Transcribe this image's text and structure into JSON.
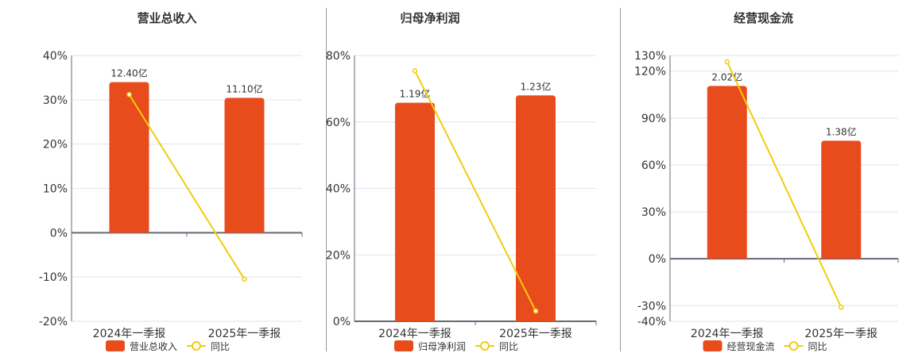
{
  "colors": {
    "bar": "#E84C1C",
    "line": "#F2CC0C",
    "grid": "#dfe3ee",
    "axis": "#666a78",
    "text": "#333333"
  },
  "chart_data": [
    {
      "type": "bar+line",
      "title": "营业总收入",
      "categories": [
        "2024年一季报",
        "2025年一季报"
      ],
      "bar_series": {
        "name": "营业总收入",
        "values": [
          12.4,
          11.1
        ],
        "labels": [
          "12.40亿",
          "11.10亿"
        ]
      },
      "line_series": {
        "name": "同比",
        "values": [
          31.2,
          -10.5
        ]
      },
      "yticks": [
        40,
        30,
        20,
        10,
        0,
        -10,
        -20
      ],
      "tick_labels": [
        "40%",
        "30%",
        "20%",
        "10%",
        "0%",
        "-10%",
        "-20%"
      ],
      "ylim": [
        -20,
        40
      ]
    },
    {
      "type": "bar+line",
      "title": "归母净利润",
      "categories": [
        "2024年一季报",
        "2025年一季报"
      ],
      "bar_series": {
        "name": "归母净利润",
        "values": [
          1.19,
          1.23
        ],
        "labels": [
          "1.19亿",
          "1.23亿"
        ]
      },
      "line_series": {
        "name": "同比",
        "values": [
          75.4,
          3.1
        ]
      },
      "yticks": [
        80,
        60,
        40,
        20,
        0
      ],
      "tick_labels": [
        "80%",
        "60%",
        "40%",
        "20%",
        "0%"
      ],
      "ylim": [
        0,
        80
      ]
    },
    {
      "type": "bar+line",
      "title": "经营现金流",
      "categories": [
        "2024年一季报",
        "2025年一季报"
      ],
      "bar_series": {
        "name": "经营现金流",
        "values": [
          2.02,
          1.38
        ],
        "labels": [
          "2.02亿",
          "1.38亿"
        ]
      },
      "line_series": {
        "name": "同比",
        "values": [
          126,
          -31
        ]
      },
      "yticks": [
        130,
        120,
        90,
        60,
        30,
        0,
        -30,
        -40
      ],
      "tick_labels": [
        "130%",
        "120%",
        "90%",
        "60%",
        "30%",
        "0%",
        "-30%",
        "-40%"
      ],
      "ylim": [
        -40,
        130
      ]
    }
  ]
}
